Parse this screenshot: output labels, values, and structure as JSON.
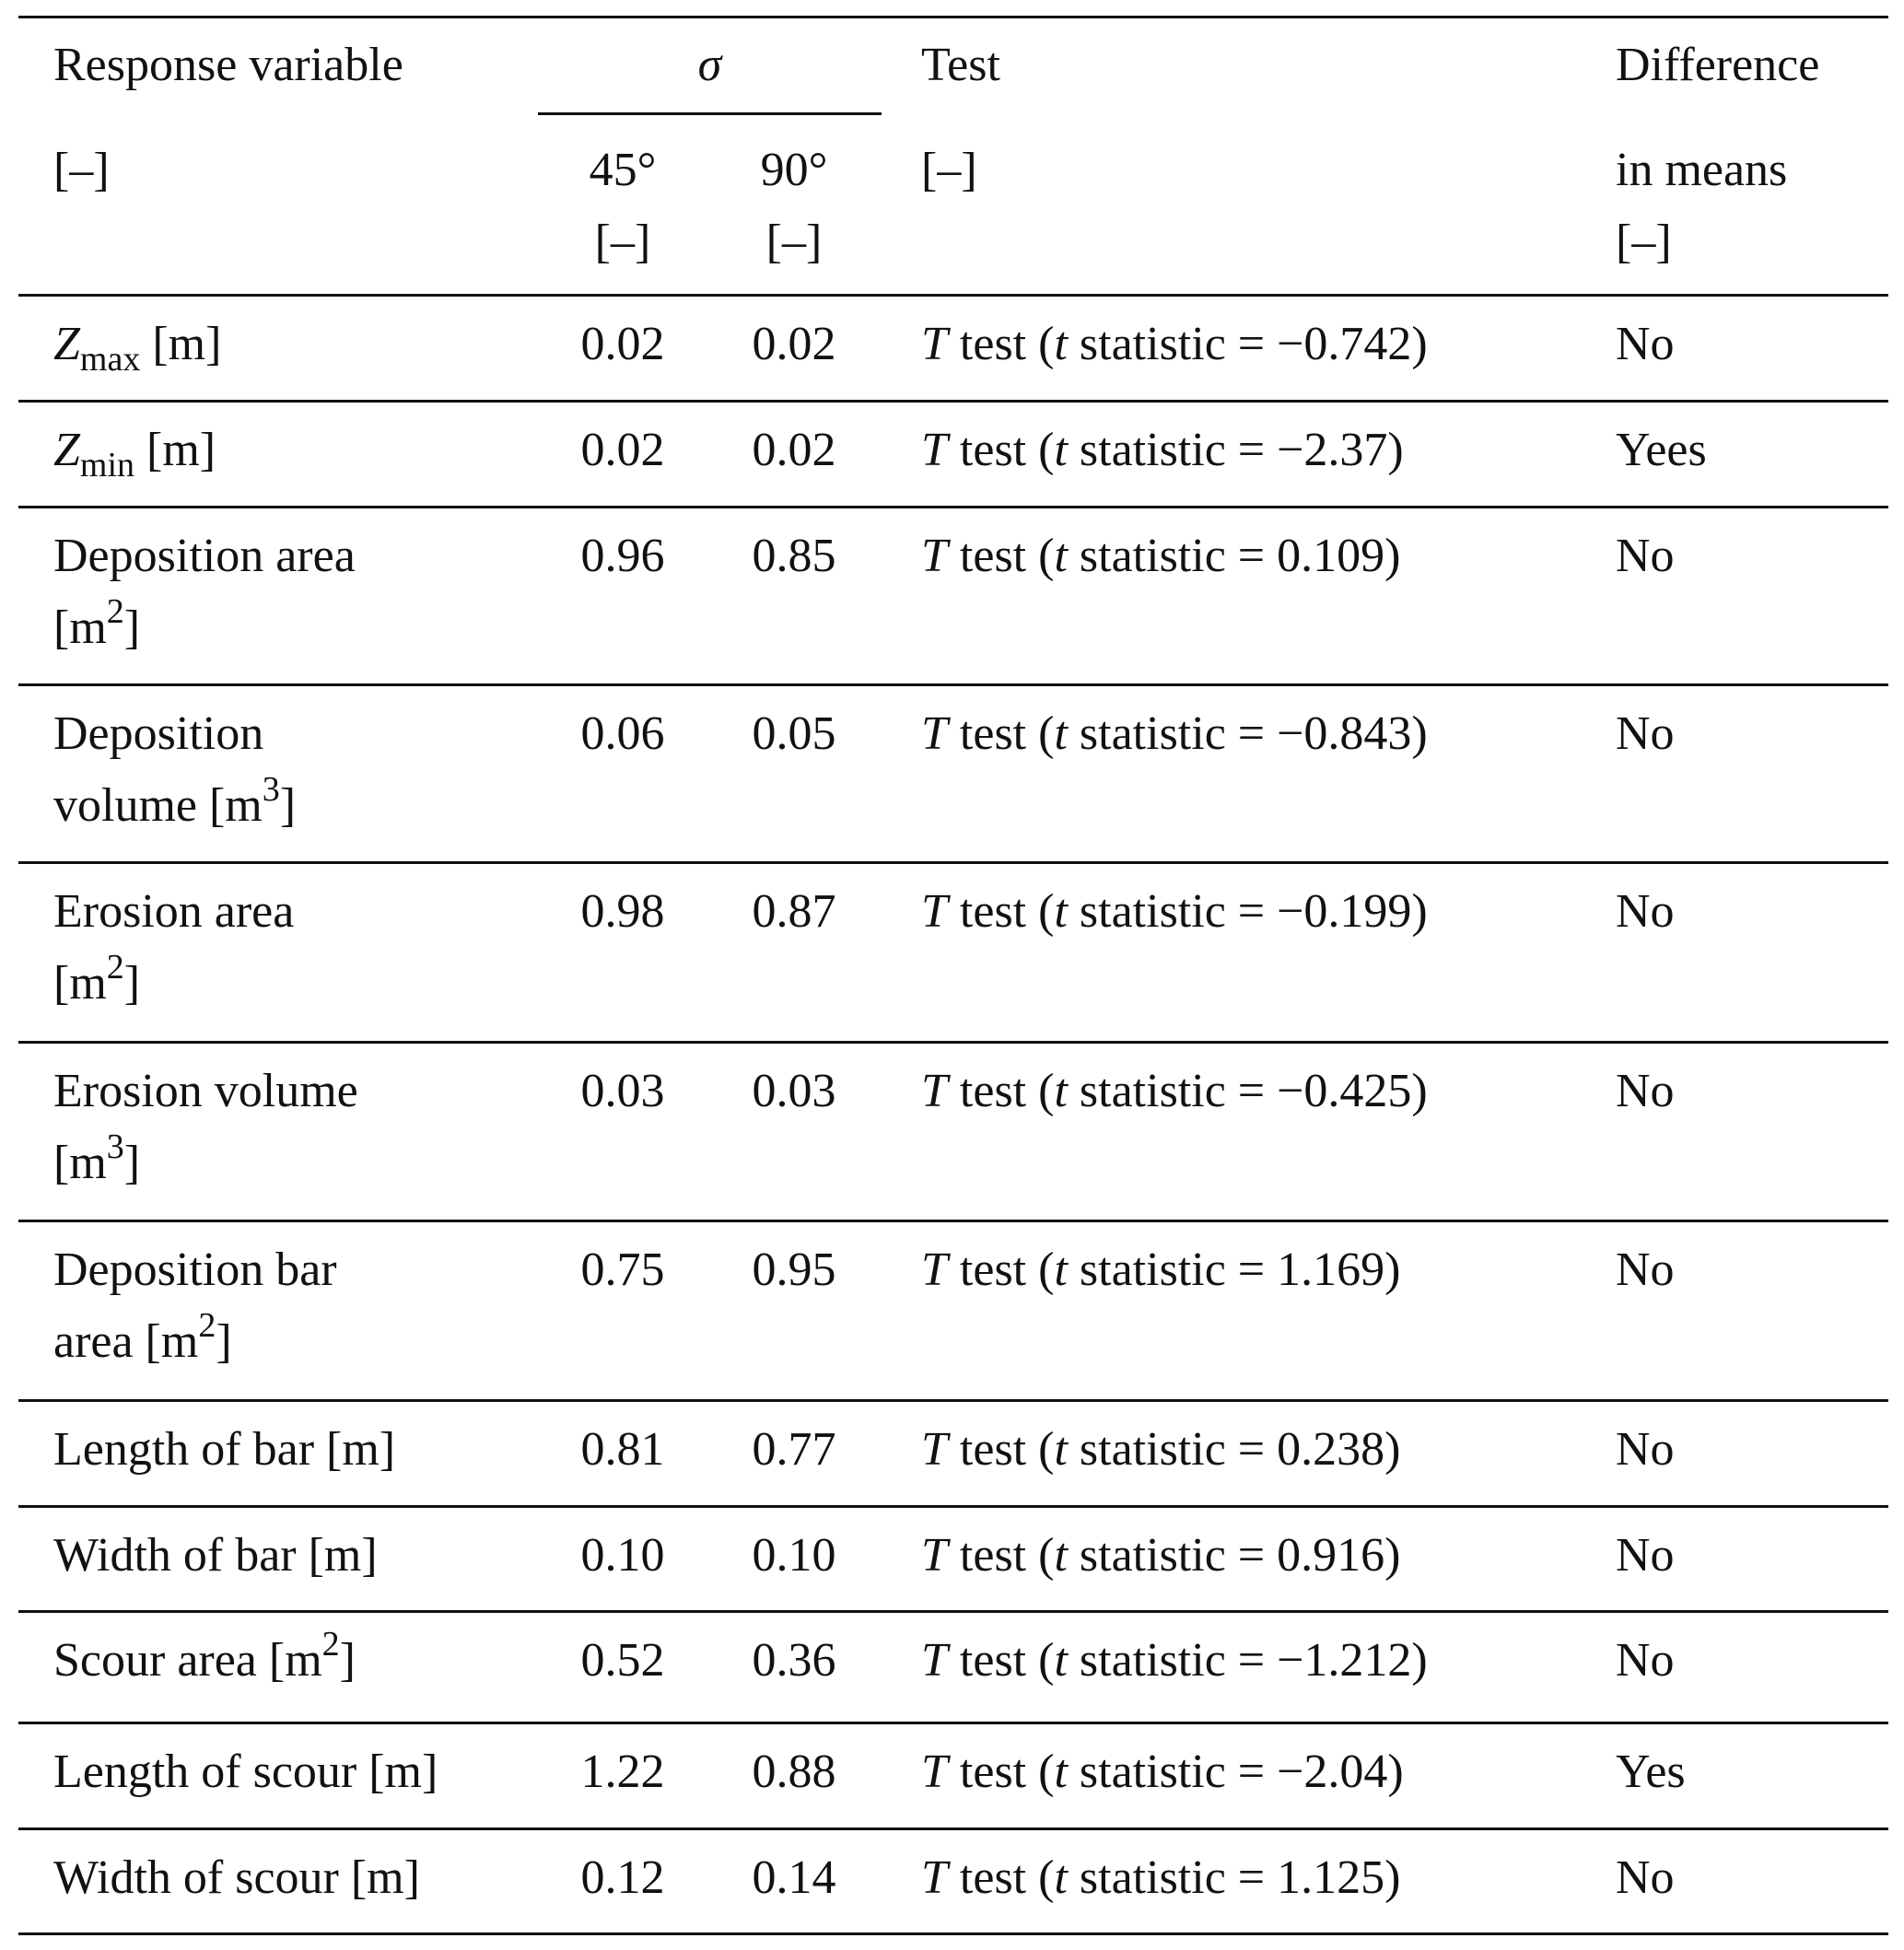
{
  "header": {
    "response_variable": "Response variable",
    "response_unit": "[–]",
    "sigma": "σ",
    "angle_45": "45°",
    "angle_45_unit": "[–]",
    "angle_90": "90°",
    "angle_90_unit": "[–]",
    "test": "Test",
    "test_unit": "[–]",
    "difference_line1": "Difference",
    "difference_line2": "in means",
    "difference_unit": "[–]"
  },
  "rows": [
    {
      "label": [
        [
          {
            "t": "Z",
            "s": "i"
          },
          {
            "t": "max",
            "s": "sub"
          },
          {
            "t": " [m]"
          }
        ]
      ],
      "v45": "0.02",
      "v90": "0.02",
      "test": "T test (t statistic = −0.742)",
      "diff": "No"
    },
    {
      "label": [
        [
          {
            "t": "Z",
            "s": "i"
          },
          {
            "t": "min",
            "s": "sub"
          },
          {
            "t": " [m]"
          }
        ]
      ],
      "v45": "0.02",
      "v90": "0.02",
      "test": "T test (t statistic = −2.37)",
      "diff": "Yees"
    },
    {
      "label": [
        [
          {
            "t": "Deposition area"
          }
        ],
        [
          {
            "t": "[m"
          },
          {
            "t": "2",
            "s": "sup"
          },
          {
            "t": "]"
          }
        ]
      ],
      "v45": "0.96",
      "v90": "0.85",
      "test": "T test (t statistic = 0.109)",
      "diff": "No"
    },
    {
      "label": [
        [
          {
            "t": "Deposition"
          }
        ],
        [
          {
            "t": "volume [m"
          },
          {
            "t": "3",
            "s": "sup"
          },
          {
            "t": "]"
          }
        ]
      ],
      "v45": "0.06",
      "v90": "0.05",
      "test": "T test (t statistic = −0.843)",
      "diff": "No"
    },
    {
      "label": [
        [
          {
            "t": "Erosion area"
          }
        ],
        [
          {
            "t": "[m"
          },
          {
            "t": "2",
            "s": "sup"
          },
          {
            "t": "]"
          }
        ]
      ],
      "v45": "0.98",
      "v90": "0.87",
      "test": "T test (t statistic = −0.199)",
      "diff": "No"
    },
    {
      "label": [
        [
          {
            "t": "Erosion volume"
          }
        ],
        [
          {
            "t": "[m"
          },
          {
            "t": "3",
            "s": "sup"
          },
          {
            "t": "]"
          }
        ]
      ],
      "v45": "0.03",
      "v90": "0.03",
      "test": "T test (t statistic = −0.425)",
      "diff": "No"
    },
    {
      "label": [
        [
          {
            "t": "Deposition bar"
          }
        ],
        [
          {
            "t": "area [m"
          },
          {
            "t": "2",
            "s": "sup"
          },
          {
            "t": "]"
          }
        ]
      ],
      "v45": "0.75",
      "v90": "0.95",
      "test": "T test (t statistic = 1.169)",
      "diff": "No"
    },
    {
      "label": [
        [
          {
            "t": "Length of bar [m]"
          }
        ]
      ],
      "v45": "0.81",
      "v90": "0.77",
      "test": "T test (t statistic = 0.238)",
      "diff": "No"
    },
    {
      "label": [
        [
          {
            "t": "Width of bar [m]"
          }
        ]
      ],
      "v45": "0.10",
      "v90": "0.10",
      "test": "T test (t statistic = 0.916)",
      "diff": "No"
    },
    {
      "label": [
        [
          {
            "t": "Scour area [m"
          },
          {
            "t": "2",
            "s": "sup"
          },
          {
            "t": "]"
          }
        ]
      ],
      "v45": "0.52",
      "v90": "0.36",
      "test": "T test (t statistic = −1.212)",
      "diff": "No"
    },
    {
      "label": [
        [
          {
            "t": "Length of scour [m]"
          }
        ]
      ],
      "v45": "1.22",
      "v90": "0.88",
      "test": "T test (t statistic = −2.04)",
      "diff": "Yes"
    },
    {
      "label": [
        [
          {
            "t": "Width of scour [m]"
          }
        ]
      ],
      "v45": "0.12",
      "v90": "0.14",
      "test": "T test (t statistic = 1.125)",
      "diff": "No"
    }
  ]
}
